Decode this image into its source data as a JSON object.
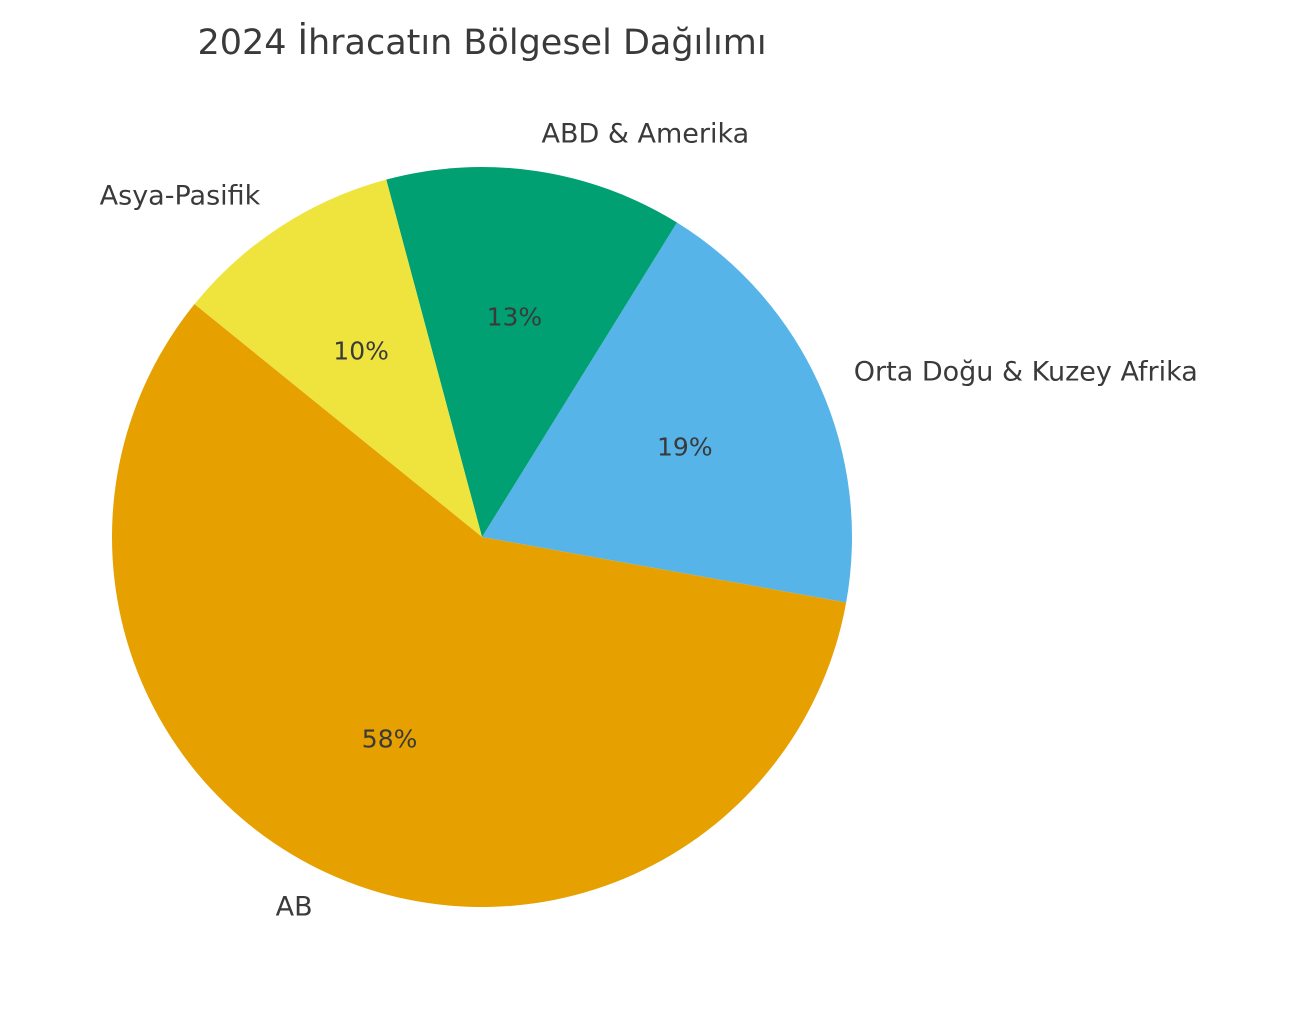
{
  "page": {
    "background_color": "#ffffff",
    "text_color": "#3a3a3a"
  },
  "chart_data": {
    "type": "pie",
    "title": "2024 İhracatın Bölgesel Dağılımı",
    "legend": "none",
    "start_angle_deg": -10.2,
    "direction": "counterclockwise",
    "label_distance": 1.1,
    "pct_distance": 0.6,
    "slices": [
      {
        "slug": "orta-dogu-kuzey-afrika",
        "label": "Orta Doğu & Kuzey Afrika",
        "value": 19,
        "pct_label": "19%",
        "color": "#56B4E9"
      },
      {
        "slug": "abd-amerika",
        "label": "ABD & Amerika",
        "value": 13,
        "pct_label": "13%",
        "color": "#00A073"
      },
      {
        "slug": "asya-pasifik",
        "label": "Asya-Pasifik",
        "value": 10,
        "pct_label": "10%",
        "color": "#EFE43E"
      },
      {
        "slug": "ab",
        "label": "AB",
        "value": 58,
        "pct_label": "58%",
        "color": "#E6A000"
      }
    ]
  }
}
